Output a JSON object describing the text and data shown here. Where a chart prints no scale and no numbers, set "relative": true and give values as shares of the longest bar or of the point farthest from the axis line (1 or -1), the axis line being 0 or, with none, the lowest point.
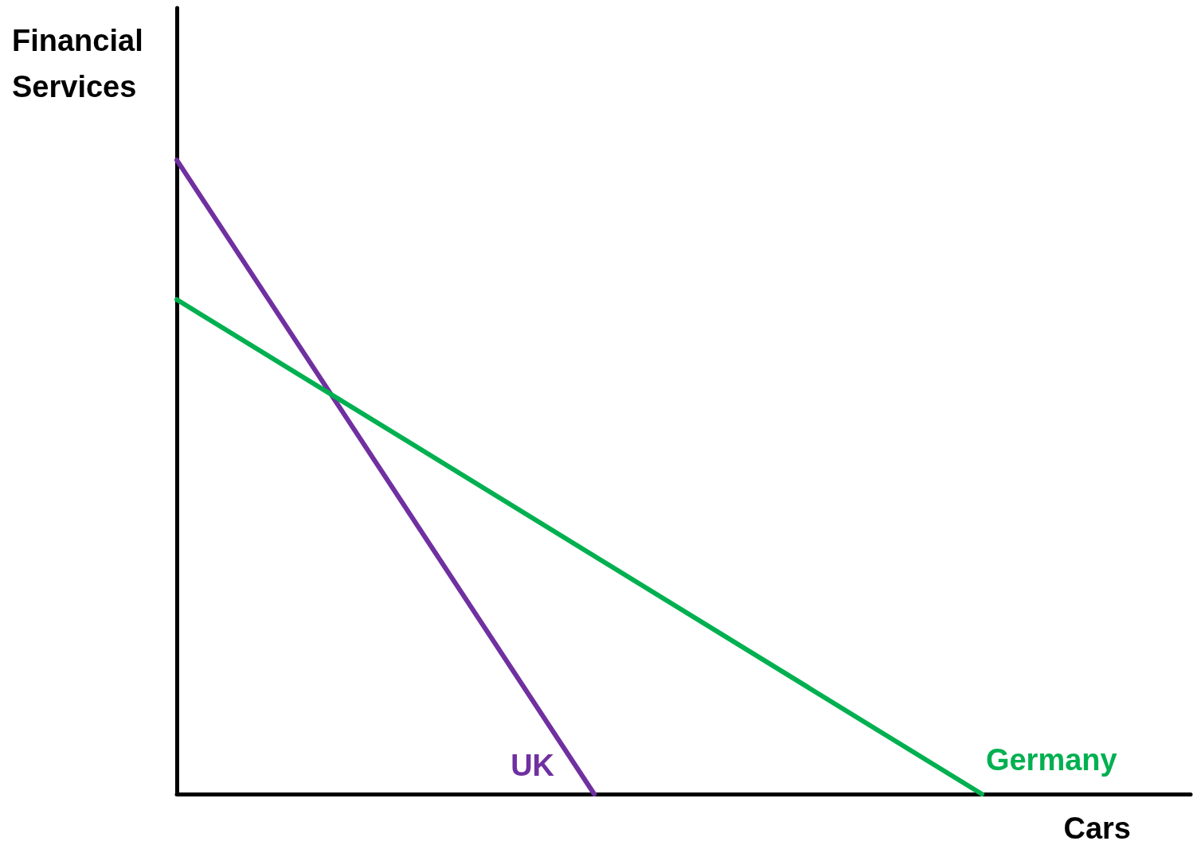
{
  "chart_data": {
    "type": "line",
    "relative": true,
    "xlabel": "Cars",
    "ylabel": "Financial Services",
    "legend": false,
    "grid": false,
    "marker": "none",
    "line_style": "solid",
    "categories": [
      null,
      null,
      null,
      null,
      null,
      null,
      null,
      null,
      null,
      null,
      null,
      null,
      null,
      null,
      null,
      null,
      null,
      null,
      null,
      null,
      null,
      null,
      null,
      null,
      null,
      null,
      null,
      null,
      null,
      null,
      null,
      null,
      null,
      null,
      null
    ],
    "series": [
      {
        "name": "UK",
        "color": "#7030a0",
        "values": [
          1,
          null,
          null,
          null,
          null,
          null,
          null,
          null,
          null,
          null,
          null,
          null,
          null,
          null,
          0,
          null,
          null,
          null,
          null,
          null,
          null,
          null,
          null,
          null,
          null,
          null,
          null,
          null,
          null,
          null,
          null,
          null,
          null,
          null,
          null
        ]
      },
      {
        "name": "Germany",
        "color": "#00b050",
        "values": [
          0.78,
          null,
          null,
          null,
          null,
          null,
          null,
          null,
          null,
          null,
          null,
          null,
          null,
          null,
          null,
          null,
          null,
          null,
          null,
          null,
          null,
          null,
          null,
          null,
          null,
          null,
          null,
          0,
          null,
          null,
          null,
          null,
          null,
          null,
          null
        ]
      }
    ]
  }
}
